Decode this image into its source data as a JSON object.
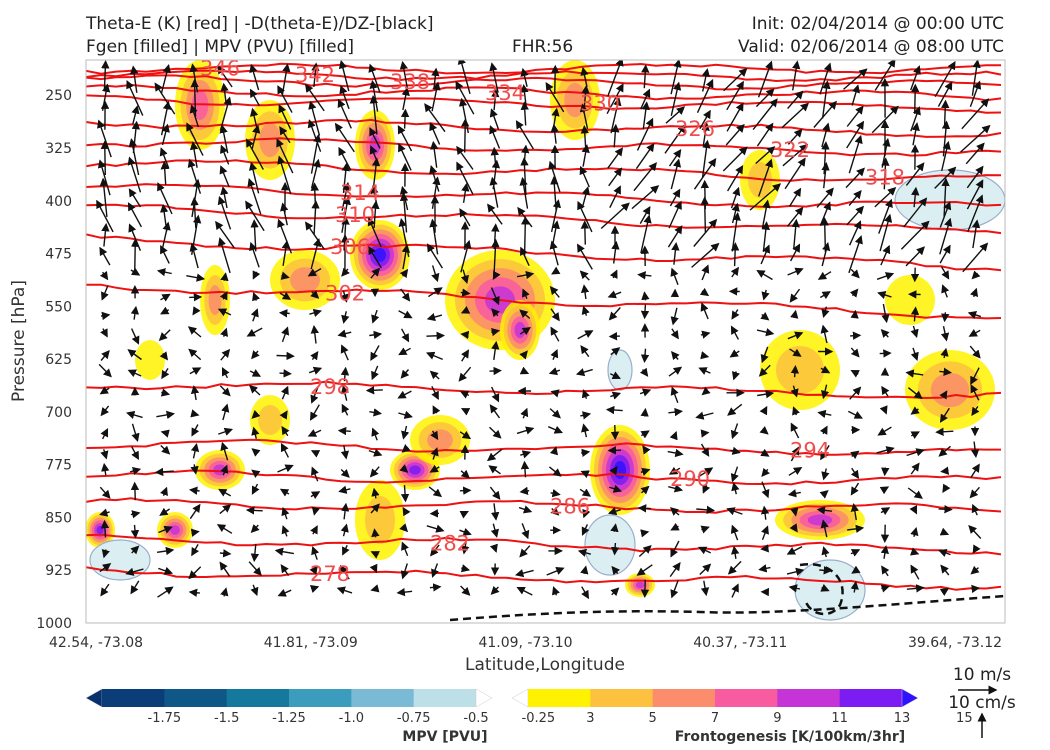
{
  "header": {
    "line1_left": "Theta-E (K) [red] | -D(theta-E)/DZ-[black]",
    "line2_left": "Fgen [filled] | MPV (PVU) [filled]",
    "fhr": "FHR:56",
    "init": "Init: 02/04/2014 @ 00:00 UTC",
    "valid": "Valid: 02/06/2014 @ 08:00 UTC"
  },
  "chart_data": {
    "type": "cross-section",
    "xlabel": "Latitude,Longitude",
    "ylabel": "Pressure [hPa]",
    "x_ticks": [
      "42.54, -73.08",
      "41.81, -73.09",
      "41.09, -73.10",
      "40.37, -73.11",
      "39.64, -73.12"
    ],
    "y_ticks": [
      250,
      325,
      400,
      475,
      550,
      625,
      700,
      775,
      850,
      925,
      1000
    ],
    "ylim": [
      1000,
      200
    ],
    "theta_e_contours": [
      {
        "label": "346",
        "p": 212,
        "slope": 0
      },
      {
        "label": "342",
        "p": 220,
        "slope": 0.05
      },
      {
        "label": "338",
        "p": 228,
        "slope": 0.1
      },
      {
        "label": "334",
        "p": 242,
        "slope": 0.12
      },
      {
        "label": "330",
        "p": 255,
        "slope": 0.15
      },
      {
        "label": "326",
        "p": 288,
        "slope": 0.18
      },
      {
        "label": "322",
        "p": 315,
        "slope": 0.2
      },
      {
        "label": "318",
        "p": 345,
        "slope": 0.3
      },
      {
        "label": "314",
        "p": 380,
        "slope": 0.35
      },
      {
        "label": "310",
        "p": 410,
        "slope": 0.4
      },
      {
        "label": "306",
        "p": 455,
        "slope": 0.45
      },
      {
        "label": "302",
        "p": 520,
        "slope": 0.5
      },
      {
        "label": "298",
        "p": 660,
        "slope": 0.2
      },
      {
        "label": "294",
        "p": 745,
        "slope": 0.15
      },
      {
        "label": "290",
        "p": 790,
        "slope": 0.1
      },
      {
        "label": "286",
        "p": 830,
        "slope": 0.1
      },
      {
        "label": "282",
        "p": 880,
        "slope": 0.2
      },
      {
        "label": "278",
        "p": 925,
        "slope": 0.25
      }
    ],
    "mpv_colorbar": {
      "title": "MPV [PVU]",
      "ticks": [
        "-1.75",
        "-1.5",
        "-1.25",
        "-1.0",
        "-0.75",
        "-0.5",
        "-0.25"
      ],
      "colors": [
        "#08306b",
        "#0b3d78",
        "#0e5787",
        "#15799e",
        "#3c9cbe",
        "#7bbad5",
        "#bddfe8",
        "#ffffff"
      ]
    },
    "fgen_colorbar": {
      "title": "Frontogenesis [K/100km/3hr]",
      "ticks": [
        "3",
        "5",
        "7",
        "9",
        "11",
        "13",
        "15"
      ],
      "colors": [
        "#ffffff",
        "#fff200",
        "#fcc13e",
        "#fb8c6c",
        "#f85ba0",
        "#c434d6",
        "#7b1cf2",
        "#2f12ff"
      ]
    },
    "vector_key": {
      "label1": "10 m/s",
      "label2": "10 cm/s"
    }
  }
}
